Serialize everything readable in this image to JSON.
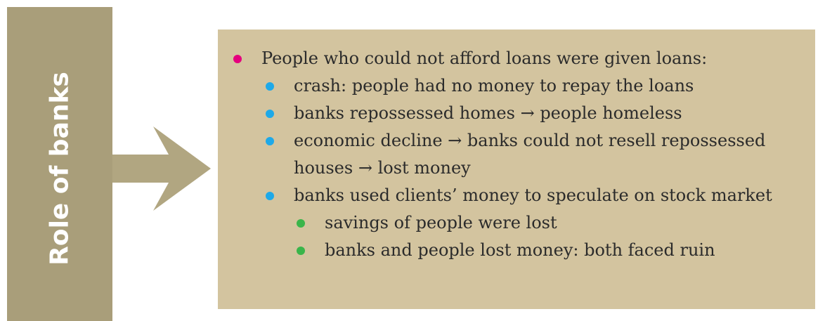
{
  "title": "Role of banks",
  "items": [
    {
      "text": "People who could not afford loans were given loans:",
      "children": [
        {
          "text": "crash: people had no money to repay the loans"
        },
        {
          "text": "banks repossessed homes → people homeless"
        },
        {
          "text": "economic decline → banks could not resell repossessed houses → lost money"
        },
        {
          "text": "banks used clients’ money to speculate on stock market",
          "children": [
            {
              "text": "savings of people were lost"
            },
            {
              "text": "banks and people lost money: both faced ruin"
            }
          ]
        }
      ]
    }
  ]
}
